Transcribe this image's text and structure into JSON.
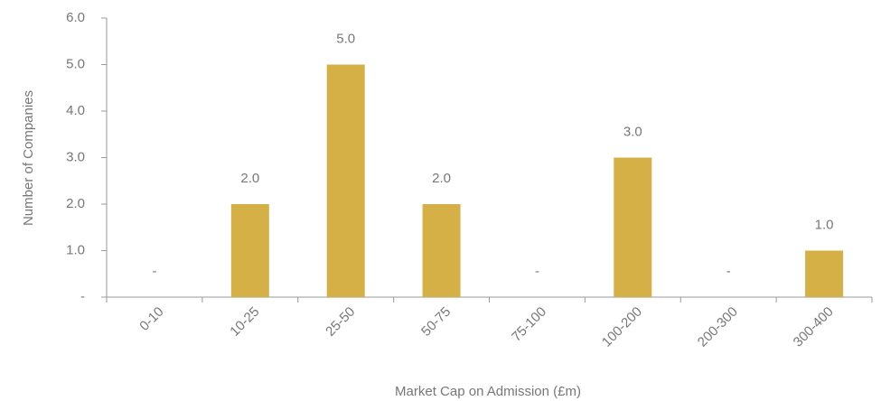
{
  "chart_data": {
    "type": "bar",
    "x_label": "Market Cap on Admission (£m)",
    "y_label": "Number of Companies",
    "categories": [
      "0-10",
      "10-25",
      "25-50",
      "50-75",
      "75-100",
      "100-200",
      "200-300",
      "300-400"
    ],
    "values": [
      0,
      2,
      5,
      2,
      0,
      3,
      0,
      1
    ],
    "value_labels": [
      "-",
      "2.0",
      "5.0",
      "2.0",
      "-",
      "3.0",
      "-",
      "1.0"
    ],
    "color": "#d4b046",
    "ylim": [
      0,
      6
    ],
    "yticks": [
      {
        "value": 0,
        "label": "-"
      },
      {
        "value": 1,
        "label": "1.0"
      },
      {
        "value": 2,
        "label": "2.0"
      },
      {
        "value": 3,
        "label": "3.0"
      },
      {
        "value": 4,
        "label": "4.0"
      },
      {
        "value": 5,
        "label": "5.0"
      },
      {
        "value": 6,
        "label": "6.0"
      }
    ]
  }
}
